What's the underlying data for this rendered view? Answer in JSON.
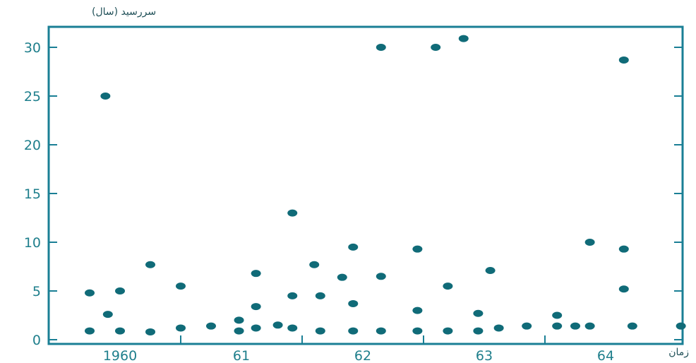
{
  "chart_data": {
    "type": "scatter",
    "title": "",
    "ylabel": "سررسید (سال)",
    "xlabel": "زمان",
    "xlim": [
      1959.6,
      1965.0
    ],
    "ylim": [
      0,
      32
    ],
    "x_ticks": [
      1960,
      1961,
      1962,
      1963,
      1964
    ],
    "x_tick_labels": [
      "1960",
      "61",
      "62",
      "63",
      "64"
    ],
    "y_ticks": [
      0,
      5,
      10,
      15,
      20,
      25,
      30
    ],
    "y_tick_labels": [
      "0",
      "5",
      "10",
      "15",
      "20",
      "25",
      "30"
    ],
    "grid": false,
    "colors": {
      "frame": "#1a7f95",
      "marker": "#106b78",
      "text": "#1f7f8c"
    },
    "points": [
      {
        "x": 1959.75,
        "y": 4.8
      },
      {
        "x": 1959.75,
        "y": 0.9
      },
      {
        "x": 1959.88,
        "y": 25.0
      },
      {
        "x": 1959.9,
        "y": 2.6
      },
      {
        "x": 1960.0,
        "y": 5.0
      },
      {
        "x": 1960.0,
        "y": 0.9
      },
      {
        "x": 1960.25,
        "y": 7.7
      },
      {
        "x": 1960.25,
        "y": 0.8
      },
      {
        "x": 1960.5,
        "y": 5.5
      },
      {
        "x": 1960.5,
        "y": 1.2
      },
      {
        "x": 1960.75,
        "y": 1.4
      },
      {
        "x": 1960.98,
        "y": 2.0
      },
      {
        "x": 1960.98,
        "y": 0.9
      },
      {
        "x": 1961.12,
        "y": 6.8
      },
      {
        "x": 1961.12,
        "y": 3.4
      },
      {
        "x": 1961.12,
        "y": 1.2
      },
      {
        "x": 1961.3,
        "y": 1.5
      },
      {
        "x": 1961.42,
        "y": 13.0
      },
      {
        "x": 1961.42,
        "y": 4.5
      },
      {
        "x": 1961.42,
        "y": 1.2
      },
      {
        "x": 1961.6,
        "y": 7.7
      },
      {
        "x": 1961.65,
        "y": 4.5
      },
      {
        "x": 1961.65,
        "y": 0.9
      },
      {
        "x": 1961.83,
        "y": 6.4
      },
      {
        "x": 1961.92,
        "y": 9.5
      },
      {
        "x": 1961.92,
        "y": 3.7
      },
      {
        "x": 1961.92,
        "y": 0.9
      },
      {
        "x": 1962.15,
        "y": 30.0
      },
      {
        "x": 1962.15,
        "y": 6.5
      },
      {
        "x": 1962.15,
        "y": 0.9
      },
      {
        "x": 1962.45,
        "y": 9.3
      },
      {
        "x": 1962.45,
        "y": 3.0
      },
      {
        "x": 1962.45,
        "y": 0.9
      },
      {
        "x": 1962.6,
        "y": 30.0
      },
      {
        "x": 1962.7,
        "y": 5.5
      },
      {
        "x": 1962.7,
        "y": 0.9
      },
      {
        "x": 1962.83,
        "y": 30.9
      },
      {
        "x": 1962.95,
        "y": 2.7
      },
      {
        "x": 1962.95,
        "y": 0.9
      },
      {
        "x": 1963.05,
        "y": 7.1
      },
      {
        "x": 1963.12,
        "y": 1.2
      },
      {
        "x": 1963.35,
        "y": 1.4
      },
      {
        "x": 1963.6,
        "y": 2.5
      },
      {
        "x": 1963.6,
        "y": 1.4
      },
      {
        "x": 1963.75,
        "y": 1.4
      },
      {
        "x": 1963.87,
        "y": 10.0
      },
      {
        "x": 1963.87,
        "y": 1.4
      },
      {
        "x": 1964.15,
        "y": 28.7
      },
      {
        "x": 1964.15,
        "y": 9.3
      },
      {
        "x": 1964.15,
        "y": 5.2
      },
      {
        "x": 1964.22,
        "y": 1.4
      },
      {
        "x": 1964.62,
        "y": 1.4
      }
    ]
  }
}
